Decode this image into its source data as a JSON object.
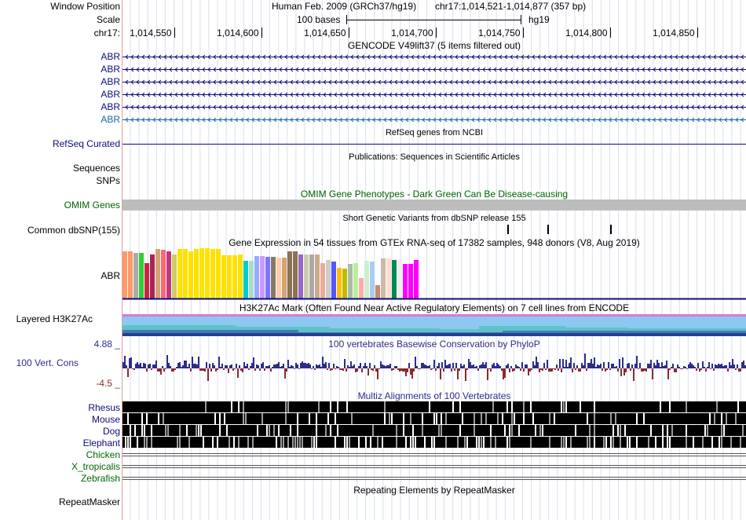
{
  "header": {
    "window_position_label": "Window Position",
    "scale_label": "Scale",
    "chrom_label": "chr17:",
    "assembly_text": "Human Feb. 2009 (GRCh37/hg19)",
    "position_text": "chr17:1,014,521-1,014,877 (357 bp)",
    "scale_text": "100 bases",
    "db_text": "hg19",
    "ruler_ticks": [
      "1,014,550",
      "1,014,600",
      "1,014,650",
      "1,014,700",
      "1,014,750",
      "1,014,800",
      "1,014,850"
    ]
  },
  "tracks": {
    "gencode": {
      "title": "GENCODE V49lift37 (5 items filtered out)",
      "items": [
        "ABR",
        "ABR",
        "ABR",
        "ABR",
        "ABR",
        "ABR"
      ],
      "color": "#0c0c78",
      "last_item_color": "#1d65a8"
    },
    "refseq": {
      "title": "RefSeq genes from NCBI",
      "label": "RefSeq Curated",
      "color": "#0c0c78"
    },
    "publications": {
      "title": "Publications: Sequences in Scientific Articles",
      "label": "Sequences"
    },
    "snps": {
      "label": "SNPs"
    },
    "omim": {
      "title": "OMIM Gene Phenotypes - Dark Green Can Be Disease-causing",
      "label": "OMIM Genes",
      "color": "#006400"
    },
    "dbsnp": {
      "title": "Short Genetic Variants from dbSNP release 155",
      "label": "Common dbSNP(155)"
    },
    "gtex": {
      "title": "Gene Expression in 54 tissues from GTEx RNA-seq of 17382 samples, 948 donors (V8, Aug 2019)",
      "label": "ABR",
      "tissue_levels": [
        0.93,
        0.93,
        0.9,
        0.9,
        0.7,
        0.87,
        0.99,
        0.97,
        0.94,
        0.87,
        0.99,
        0.99,
        0.94,
        0.99,
        1.0,
        1.0,
        0.99,
        0.99,
        0.86,
        0.86,
        0.86,
        0.87,
        0.75,
        0.75,
        0.84,
        0.84,
        0.83,
        0.83,
        0.81,
        0.81,
        0.93,
        0.93,
        0.88,
        0.88,
        0.87,
        0.88,
        0.7,
        0.76,
        0.74,
        0.61,
        0.6,
        0.68,
        0.7,
        0.4,
        0.75,
        0.73,
        0.27,
        0.8,
        0.79,
        0.77,
        0.78,
        0.68,
        0.68,
        0.76
      ],
      "tissue_colors": [
        "#ff9966",
        "#ff9966",
        "#aaaaaa",
        "#33cc33",
        "#cc2244",
        "#aa2255",
        "#d4a373",
        "#ff6677",
        "#c03a7a",
        "#cccc66",
        "#ffe100",
        "#ffe100",
        "#ffe100",
        "#ffe100",
        "#ffe100",
        "#ffe100",
        "#ffe100",
        "#ffe100",
        "#ffe100",
        "#ffe100",
        "#ffe100",
        "#ffe100",
        "#00cccc",
        "#aaddcc",
        "#99aaff",
        "#cc99ff",
        "#7777ff",
        "#887766",
        "#ffccaa",
        "#d6a26e",
        "#8b7355",
        "#8b7355",
        "#9966cc",
        "#ccccaa",
        "#aaaaaa",
        "#ccaa88",
        "#eeaa99",
        "#cccccc",
        "#5555ff",
        "#ffbb00",
        "#bbbb00",
        "#aabbaa",
        "#bbee99",
        "#ffaaaa",
        "#cceecc",
        "#aaccee",
        "#cc8866",
        "#ccbbaa",
        "#ffddcc",
        "#008855",
        "#eeeeee",
        "#ff00ff",
        "#ff00ff",
        "#ff00ff"
      ]
    },
    "h3k27ac": {
      "title": "H3K27Ac Mark (Often Found Near Active Regulatory Elements) on 7 cell lines from ENCODE",
      "label": "Layered H3K27Ac"
    },
    "phylop": {
      "title": "100 vertebrates Basewise Conservation by PhyloP",
      "label": "100 Vert. Cons",
      "max_label": "4.88 _",
      "min_label": "-4.5 _",
      "pos_color": "#2d2d8a",
      "neg_color": "#8b2a2a"
    },
    "multiz": {
      "title": "Multiz Alignments of 100 Vertebrates",
      "species": [
        "Rhesus",
        "Mouse",
        "Dog",
        "Elephant",
        "Chicken",
        "X_tropicalis",
        "Zebrafish"
      ],
      "color": "#0c0c78",
      "green_color": "#006400"
    },
    "repeatmasker": {
      "title": "Repeating Elements by RepeatMasker",
      "label": "RepeatMasker"
    }
  }
}
